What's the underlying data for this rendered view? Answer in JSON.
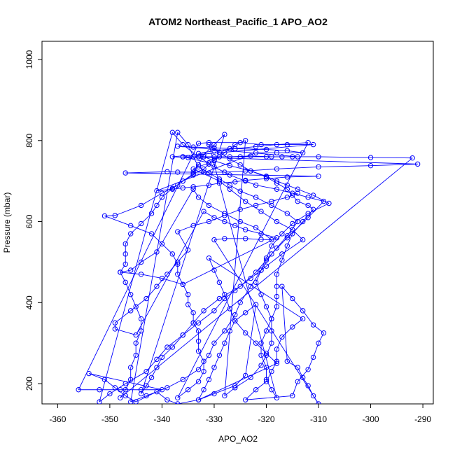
{
  "chart_data": {
    "type": "line",
    "title": "ATOM2 Northeast_Pacific_1 APO_AO2",
    "xlabel": "APO_AO2",
    "ylabel": "Pressure (mbar)",
    "xlim": [
      -363,
      -288
    ],
    "ylim": [
      1045,
      150
    ],
    "y_inverted": true,
    "xticks": [
      -360,
      -350,
      -340,
      -330,
      -320,
      -310,
      -300,
      -290
    ],
    "yticks": [
      200,
      400,
      600,
      800,
      1000
    ],
    "series_color": "#0000ff",
    "marker": "open-circle",
    "points": [
      [
        -336,
        760
      ],
      [
        -331,
        745
      ],
      [
        -334,
        730
      ],
      [
        -329,
        700
      ],
      [
        -327,
        680
      ],
      [
        -324,
        650
      ],
      [
        -321,
        625
      ],
      [
        -318,
        600
      ],
      [
        -315,
        580
      ],
      [
        -313,
        555
      ],
      [
        -317,
        520
      ],
      [
        -320,
        490
      ],
      [
        -323,
        460
      ],
      [
        -326,
        430
      ],
      [
        -328,
        410
      ],
      [
        -330,
        380
      ],
      [
        -333,
        350
      ],
      [
        -336,
        320
      ],
      [
        -339,
        290
      ],
      [
        -341,
        260
      ],
      [
        -343,
        230
      ],
      [
        -347,
        200
      ],
      [
        -350,
        175
      ],
      [
        -352,
        155
      ],
      [
        -338,
        820
      ],
      [
        -336,
        790
      ],
      [
        -333,
        760
      ],
      [
        -330,
        735
      ],
      [
        -327,
        715
      ],
      [
        -324,
        700
      ],
      [
        -322,
        690
      ],
      [
        -318,
        680
      ],
      [
        -315,
        670
      ],
      [
        -312,
        660
      ],
      [
        -309,
        650
      ],
      [
        -312,
        610
      ],
      [
        -316,
        560
      ],
      [
        -319,
        520
      ],
      [
        -321,
        480
      ],
      [
        -323,
        440
      ],
      [
        -325,
        400
      ],
      [
        -326,
        370
      ],
      [
        -328,
        330
      ],
      [
        -330,
        300
      ],
      [
        -331,
        270
      ],
      [
        -333,
        235
      ],
      [
        -336,
        210
      ],
      [
        -339,
        190
      ],
      [
        -343,
        170
      ],
      [
        -346,
        155
      ],
      [
        -337,
        820
      ],
      [
        -335,
        790
      ],
      [
        -334,
        760
      ],
      [
        -333,
        735
      ],
      [
        -331,
        720
      ],
      [
        -329,
        705
      ],
      [
        -327,
        690
      ],
      [
        -325,
        675
      ],
      [
        -322,
        660
      ],
      [
        -319,
        640
      ],
      [
        -316,
        620
      ],
      [
        -314,
        600
      ],
      [
        -316,
        565
      ],
      [
        -318,
        535
      ],
      [
        -320,
        505
      ],
      [
        -322,
        475
      ],
      [
        -325,
        440
      ],
      [
        -329,
        410
      ],
      [
        -332,
        380
      ],
      [
        -334,
        350
      ],
      [
        -336,
        320
      ],
      [
        -338,
        290
      ],
      [
        -340,
        265
      ],
      [
        -341,
        240
      ],
      [
        -342,
        215
      ],
      [
        -343,
        195
      ],
      [
        -344,
        175
      ],
      [
        -328,
        815
      ],
      [
        -330,
        790
      ],
      [
        -332,
        765
      ],
      [
        -333,
        740
      ],
      [
        -334,
        715
      ],
      [
        -336,
        700
      ],
      [
        -337,
        690
      ],
      [
        -340,
        670
      ],
      [
        -344,
        640
      ],
      [
        -349,
        615
      ],
      [
        -351,
        614
      ],
      [
        -346,
        590
      ],
      [
        -342,
        570
      ],
      [
        -340,
        545
      ],
      [
        -338,
        520
      ],
      [
        -337,
        495
      ],
      [
        -337,
        470
      ],
      [
        -336,
        445
      ],
      [
        -335,
        420
      ],
      [
        -335,
        395
      ],
      [
        -334,
        375
      ],
      [
        -334,
        350
      ],
      [
        -333,
        330
      ],
      [
        -333,
        305
      ],
      [
        -333,
        280
      ],
      [
        -332,
        255
      ],
      [
        -332,
        230
      ],
      [
        -333,
        205
      ],
      [
        -335,
        185
      ],
      [
        -337,
        165
      ],
      [
        -312,
        795
      ],
      [
        -318,
        790
      ],
      [
        -322,
        785
      ],
      [
        -326,
        780
      ],
      [
        -330,
        775
      ],
      [
        -333,
        768
      ],
      [
        -332,
        760
      ],
      [
        -330,
        750
      ],
      [
        -327,
        738
      ],
      [
        -323,
        725
      ],
      [
        -320,
        712
      ],
      [
        -318,
        700
      ],
      [
        -316,
        690
      ],
      [
        -314,
        680
      ],
      [
        -311,
        665
      ],
      [
        -308,
        645
      ],
      [
        -312,
        620
      ],
      [
        -315,
        595
      ],
      [
        -317,
        570
      ],
      [
        -319,
        540
      ],
      [
        -320,
        510
      ],
      [
        -321,
        480
      ],
      [
        -322,
        450
      ],
      [
        -321,
        420
      ],
      [
        -320,
        390
      ],
      [
        -319,
        360
      ],
      [
        -320,
        330
      ],
      [
        -321,
        300
      ],
      [
        -321,
        270
      ],
      [
        -320,
        240
      ],
      [
        -320,
        210
      ],
      [
        -319,
        185
      ],
      [
        -318,
        165
      ],
      [
        -331,
        790
      ],
      [
        -329,
        770
      ],
      [
        -327,
        755
      ],
      [
        -325,
        740
      ],
      [
        -323,
        725
      ],
      [
        -320,
        710
      ],
      [
        -318,
        695
      ],
      [
        -316,
        680
      ],
      [
        -315,
        665
      ],
      [
        -314,
        650
      ],
      [
        -312,
        640
      ],
      [
        -311,
        630
      ],
      [
        -313,
        600
      ],
      [
        -315,
        570
      ],
      [
        -316,
        540
      ],
      [
        -317,
        505
      ],
      [
        -318,
        470
      ],
      [
        -318,
        440
      ],
      [
        -318,
        415
      ],
      [
        -318,
        390
      ],
      [
        -319,
        360
      ],
      [
        -319,
        330
      ],
      [
        -319,
        300
      ],
      [
        -320,
        270
      ],
      [
        -321,
        245
      ],
      [
        -323,
        215
      ],
      [
        -326,
        190
      ],
      [
        -328,
        170
      ],
      [
        -324,
        800
      ],
      [
        -326,
        790
      ],
      [
        -327,
        780
      ],
      [
        -328,
        770
      ],
      [
        -329,
        760
      ],
      [
        -330,
        752
      ],
      [
        -331,
        742
      ],
      [
        -332,
        730
      ],
      [
        -334,
        718
      ],
      [
        -336,
        700
      ],
      [
        -338,
        682
      ],
      [
        -340,
        660
      ],
      [
        -341,
        640
      ],
      [
        -342,
        620
      ],
      [
        -344,
        595
      ],
      [
        -346,
        570
      ],
      [
        -347,
        545
      ],
      [
        -347,
        520
      ],
      [
        -347,
        495
      ],
      [
        -348,
        475
      ],
      [
        -347,
        450
      ],
      [
        -346,
        420
      ],
      [
        -345,
        390
      ],
      [
        -344,
        360
      ],
      [
        -344,
        330
      ],
      [
        -345,
        300
      ],
      [
        -345,
        270
      ],
      [
        -346,
        240
      ],
      [
        -346,
        210
      ],
      [
        -347,
        185
      ],
      [
        -348,
        165
      ],
      [
        -292,
        757
      ],
      [
        -300,
        758
      ],
      [
        -310,
        760
      ],
      [
        -315,
        760
      ],
      [
        -320,
        760
      ],
      [
        -325,
        760
      ],
      [
        -330,
        760
      ],
      [
        -334,
        760
      ],
      [
        -336,
        760
      ],
      [
        -291,
        742
      ],
      [
        -300,
        738
      ],
      [
        -310,
        735
      ],
      [
        -318,
        730
      ],
      [
        -324,
        725
      ],
      [
        -328,
        722
      ],
      [
        -332,
        722
      ],
      [
        -334,
        722
      ],
      [
        -337,
        722
      ],
      [
        -339,
        723
      ],
      [
        -347,
        720
      ],
      [
        -310,
        712
      ],
      [
        -316,
        710
      ],
      [
        -320,
        706
      ],
      [
        -324,
        702
      ],
      [
        -326,
        698
      ],
      [
        -329,
        695
      ],
      [
        -331,
        690
      ],
      [
        -334,
        686
      ],
      [
        -336,
        683
      ],
      [
        -338,
        680
      ],
      [
        -341,
        676
      ],
      [
        -322,
        770
      ],
      [
        -318,
        770
      ],
      [
        -313,
        770
      ],
      [
        -316,
        775
      ],
      [
        -320,
        778
      ],
      [
        -326,
        780
      ],
      [
        -330,
        782
      ],
      [
        -334,
        784
      ],
      [
        -337,
        786
      ],
      [
        -314,
        760
      ],
      [
        -317,
        760
      ],
      [
        -319,
        760
      ],
      [
        -323,
        762
      ],
      [
        -327,
        760
      ],
      [
        -330,
        760
      ],
      [
        -333,
        760
      ],
      [
        -335,
        758
      ],
      [
        -338,
        760
      ],
      [
        -311,
        790
      ],
      [
        -316,
        790
      ],
      [
        -321,
        790
      ],
      [
        -325,
        795
      ],
      [
        -331,
        795
      ],
      [
        -333,
        793
      ],
      [
        -356,
        185
      ],
      [
        -352,
        185
      ],
      [
        -348,
        185
      ],
      [
        -344,
        185
      ],
      [
        -340,
        185
      ],
      [
        -354,
        225
      ],
      [
        -351,
        210
      ],
      [
        -349,
        190
      ],
      [
        -347,
        170
      ],
      [
        -345,
        155
      ],
      [
        -341,
        180
      ],
      [
        -339,
        160
      ],
      [
        -337,
        150
      ],
      [
        -333,
        160
      ],
      [
        -330,
        175
      ],
      [
        -326,
        195
      ],
      [
        -324,
        220
      ],
      [
        -322,
        395
      ],
      [
        -324,
        375
      ],
      [
        -326,
        355
      ],
      [
        -327,
        330
      ],
      [
        -328,
        300
      ],
      [
        -329,
        270
      ],
      [
        -330,
        240
      ],
      [
        -331,
        210
      ],
      [
        -332,
        185
      ],
      [
        -333,
        160
      ],
      [
        -318,
        250
      ],
      [
        -320,
        275
      ],
      [
        -322,
        300
      ],
      [
        -324,
        325
      ],
      [
        -326,
        355
      ],
      [
        -327,
        385
      ],
      [
        -328,
        420
      ],
      [
        -329,
        450
      ],
      [
        -330,
        480
      ],
      [
        -331,
        510
      ],
      [
        -313,
        360
      ],
      [
        -315,
        340
      ],
      [
        -317,
        315
      ],
      [
        -318,
        285
      ],
      [
        -318,
        255
      ],
      [
        -319,
        230
      ],
      [
        -320,
        205
      ],
      [
        -322,
        185
      ],
      [
        -324,
        160
      ],
      [
        -315,
        170
      ],
      [
        -314,
        205
      ],
      [
        -312,
        235
      ],
      [
        -311,
        265
      ],
      [
        -310,
        300
      ],
      [
        -309,
        325
      ],
      [
        -311,
        345
      ],
      [
        -313,
        380
      ],
      [
        -315,
        410
      ],
      [
        -317,
        440
      ],
      [
        -316,
        255
      ],
      [
        -314,
        240
      ],
      [
        -313,
        215
      ],
      [
        -312,
        195
      ],
      [
        -311,
        170
      ],
      [
        -310,
        150
      ],
      [
        -330,
        555
      ],
      [
        -328,
        558
      ],
      [
        -324,
        558
      ],
      [
        -321,
        556
      ],
      [
        -319,
        555
      ],
      [
        -322,
        585
      ],
      [
        -325,
        600
      ],
      [
        -328,
        620
      ],
      [
        -331,
        640
      ],
      [
        -333,
        660
      ],
      [
        -334,
        680
      ],
      [
        -341,
        525
      ],
      [
        -344,
        500
      ],
      [
        -346,
        480
      ],
      [
        -348,
        475
      ],
      [
        -344,
        470
      ],
      [
        -340,
        460
      ],
      [
        -336,
        445
      ],
      [
        -318,
        560
      ],
      [
        -321,
        570
      ],
      [
        -324,
        580
      ],
      [
        -326,
        590
      ],
      [
        -328,
        600
      ],
      [
        -330,
        610
      ],
      [
        -332,
        625
      ],
      [
        -345,
        320
      ],
      [
        -349,
        335
      ],
      [
        -349,
        350
      ],
      [
        -346,
        380
      ],
      [
        -343,
        410
      ],
      [
        -341,
        440
      ],
      [
        -339,
        470
      ],
      [
        -337,
        500
      ],
      [
        -335,
        530
      ],
      [
        -337,
        575
      ],
      [
        -334,
        590
      ],
      [
        -331,
        600
      ],
      [
        -328,
        615
      ],
      [
        -325,
        630
      ],
      [
        -322,
        640
      ],
      [
        -319,
        650
      ],
      [
        -316,
        660
      ],
      [
        -314,
        670
      ]
    ]
  }
}
